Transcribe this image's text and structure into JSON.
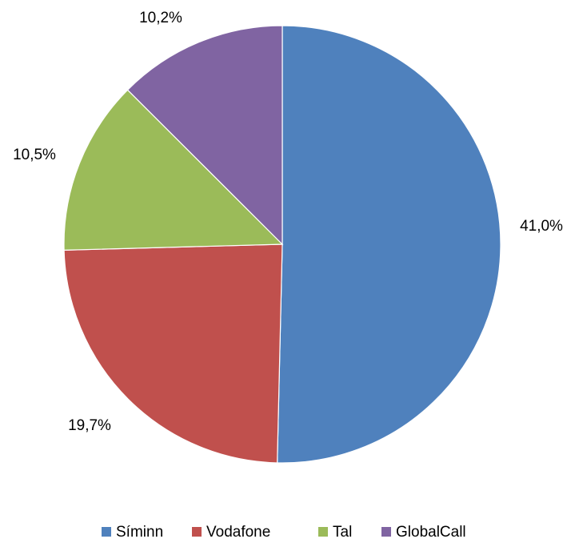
{
  "chart_data": {
    "type": "pie",
    "slices": [
      {
        "name": "Síminn",
        "value": 41.0,
        "label": "41,0%",
        "color": "#4F81BD"
      },
      {
        "name": "Vodafone",
        "value": 19.7,
        "label": "19,7%",
        "color": "#C0504D"
      },
      {
        "name": "Tal",
        "value": 10.5,
        "label": "10,5%",
        "color": "#9BBB59"
      },
      {
        "name": "GlobalCall",
        "value": 10.2,
        "label": "10,2%",
        "color": "#8064A2"
      }
    ],
    "legend_position": "bottom",
    "start_angle": "top",
    "direction": "clockwise"
  }
}
